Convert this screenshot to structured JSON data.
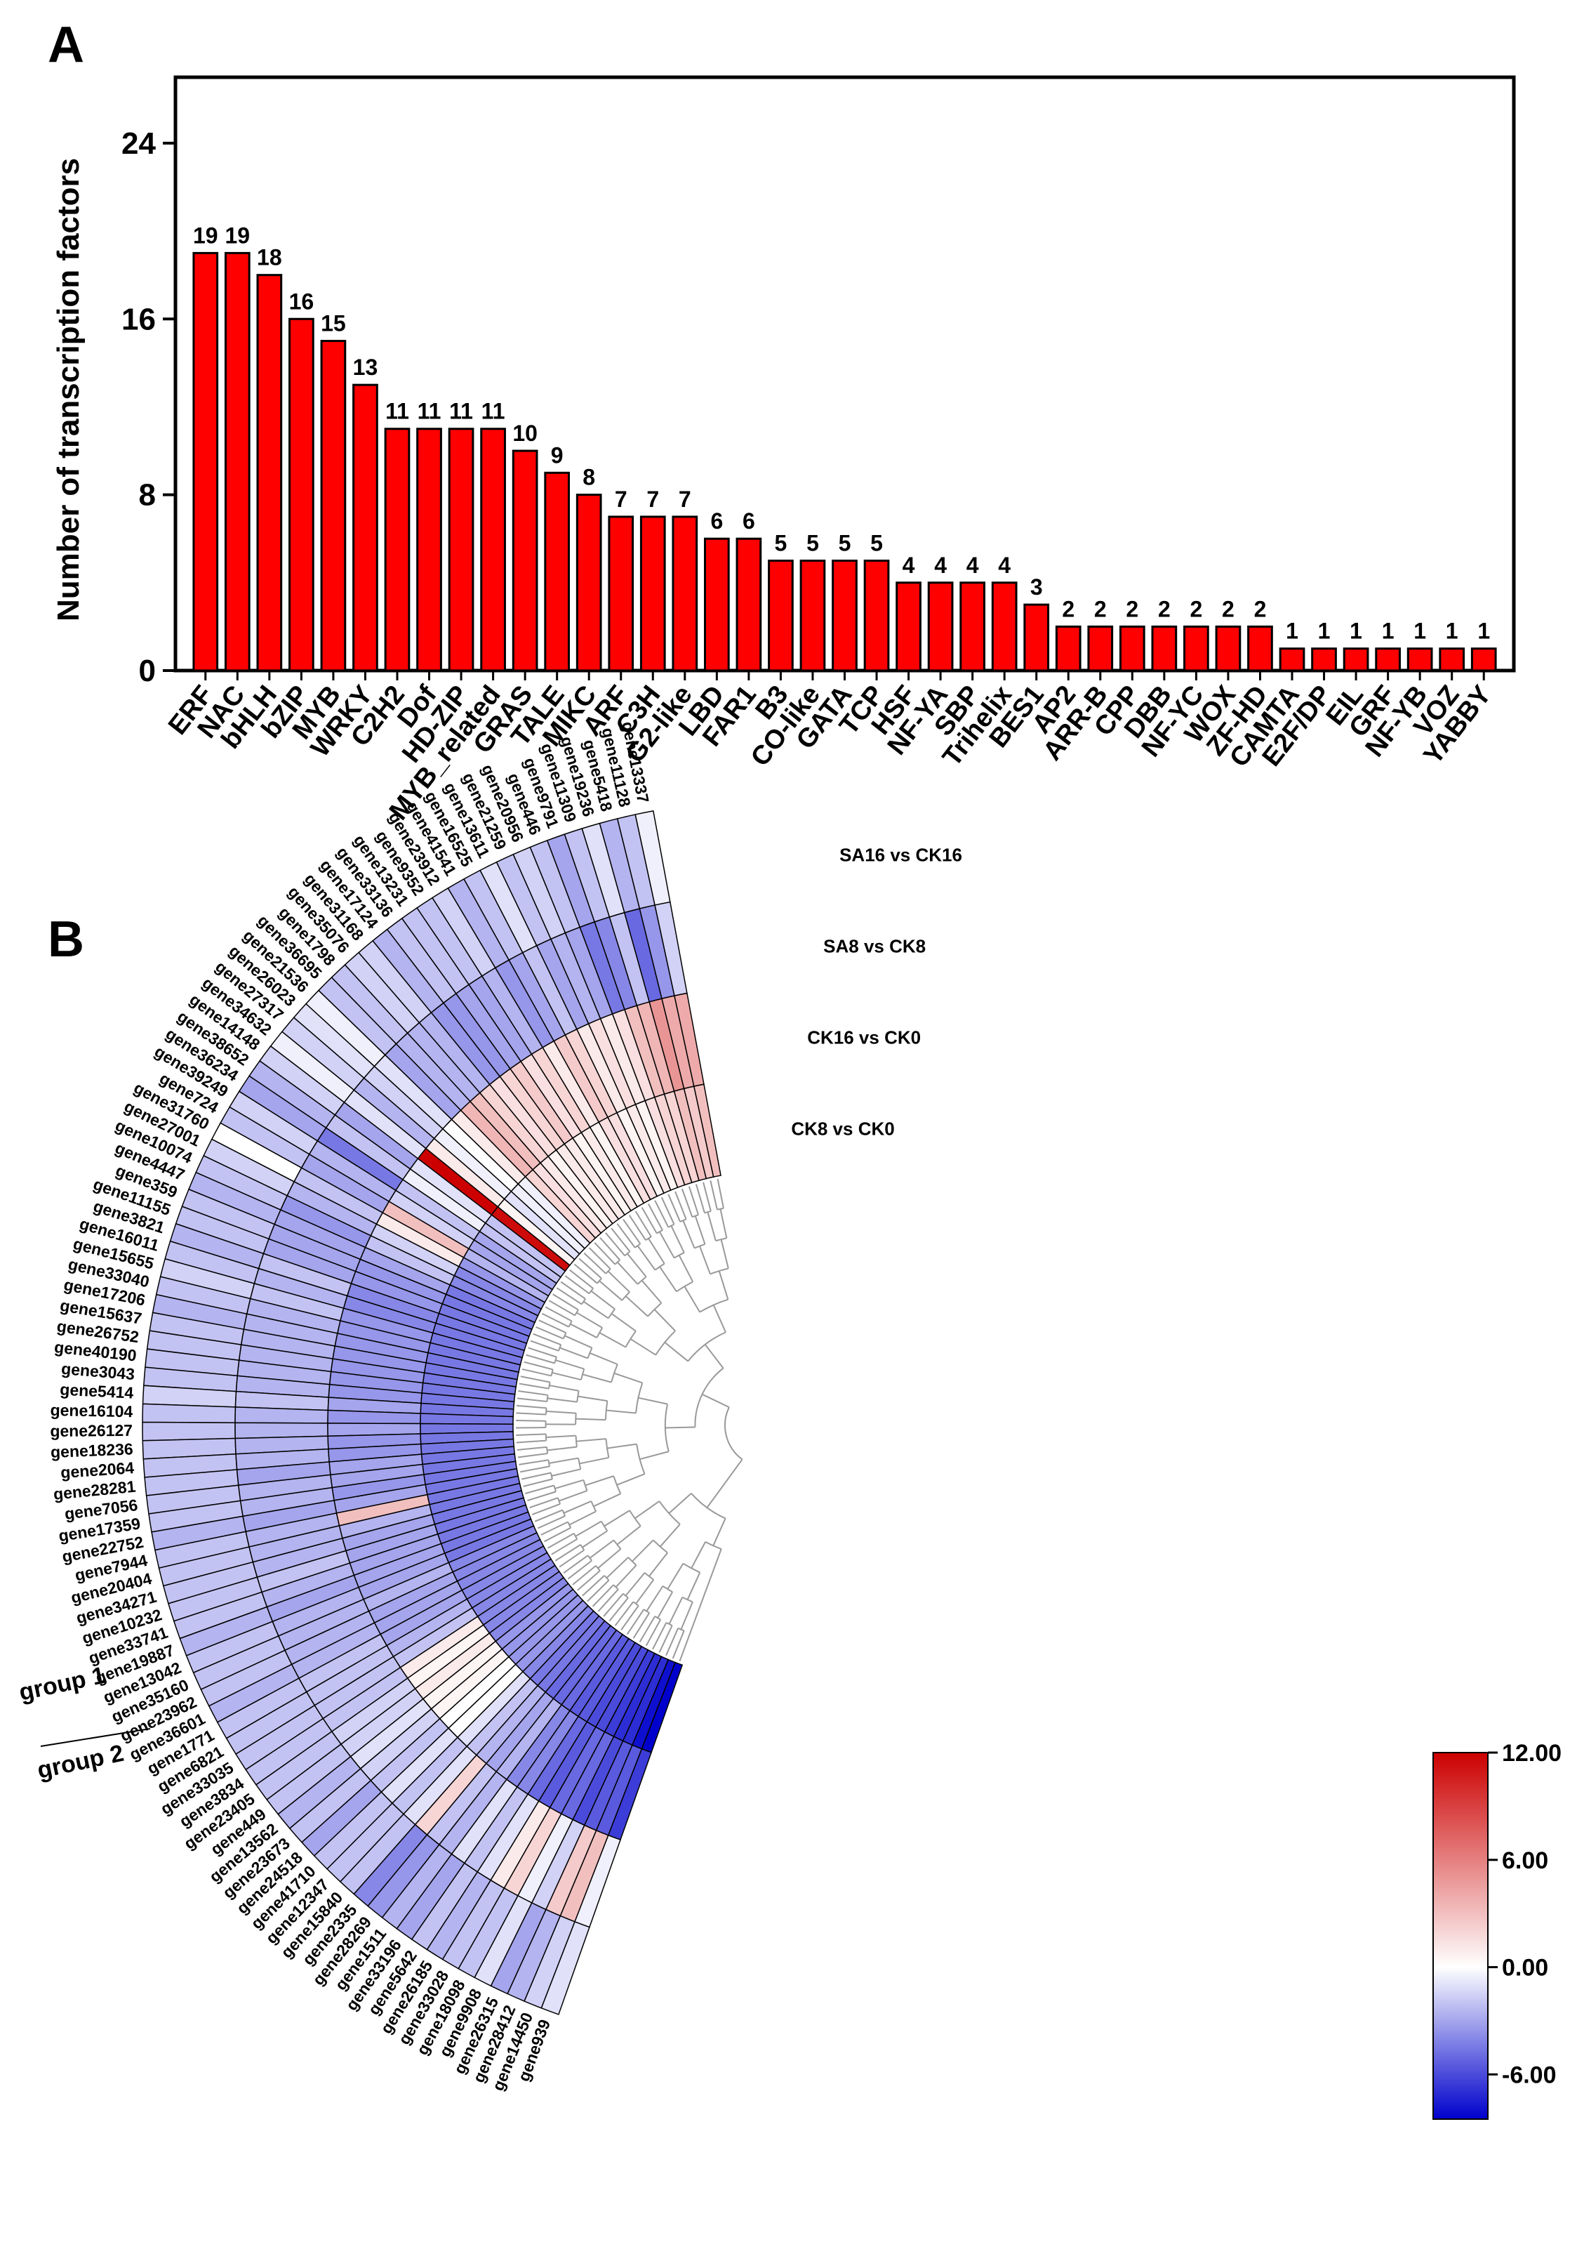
{
  "panels": {
    "a": "A",
    "b": "B"
  },
  "chart_data": [
    {
      "type": "bar",
      "ylabel": "Number of transcription factors",
      "xlabel": "",
      "ylim": [
        0,
        27
      ],
      "yticks": [
        0,
        8,
        16,
        24
      ],
      "color": "#ff0000",
      "categories": [
        "ERF",
        "NAC",
        "bHLH",
        "bZIP",
        "MYB",
        "WRKY",
        "C2H2",
        "Dof",
        "HD-ZIP",
        "MYB_related",
        "GRAS",
        "TALE",
        "MIKC",
        "ARF",
        "C3H",
        "G2-like",
        "LBD",
        "FAR1",
        "B3",
        "CO-like",
        "GATA",
        "TCP",
        "HSF",
        "NF-YA",
        "SBP",
        "Trihelix",
        "BES1",
        "AP2",
        "ARR-B",
        "CPP",
        "DBB",
        "NF-YC",
        "WOX",
        "ZF-HD",
        "CAMTA",
        "E2F/DP",
        "EIL",
        "GRF",
        "NF-YB",
        "VOZ",
        "YABBY"
      ],
      "values": [
        19,
        19,
        18,
        16,
        15,
        13,
        11,
        11,
        11,
        11,
        10,
        9,
        8,
        7,
        7,
        7,
        6,
        6,
        5,
        5,
        5,
        5,
        4,
        4,
        4,
        4,
        3,
        2,
        2,
        2,
        2,
        2,
        2,
        2,
        1,
        1,
        1,
        1,
        1,
        1,
        1
      ],
      "data_labels": [
        "19",
        "19",
        "18",
        "16",
        "15",
        "13",
        "11",
        "11",
        "11",
        "11",
        "10",
        "9",
        "8",
        "7",
        "7",
        "7",
        "6",
        "6",
        "5",
        "5",
        "5",
        "5",
        "4",
        "4",
        "4",
        "4",
        "3",
        "2",
        "2",
        "2",
        "2",
        "2",
        "2",
        "2",
        "1",
        "1",
        "1",
        "1",
        "1",
        "1",
        "1"
      ]
    },
    {
      "type": "heatmap",
      "layout": "circular",
      "rings": [
        "SA16 vs CK16",
        "SA8 vs CK8",
        "CK16 vs CK0",
        "CK8 vs CK0"
      ],
      "genes": [
        "gene13337",
        "gene11128",
        "gene5418",
        "gene19236",
        "gene11309",
        "gene9791",
        "gene446",
        "gene20956",
        "gene21259",
        "gene13611",
        "gene16525",
        "gene41541",
        "gene23912",
        "gene9352",
        "gene13231",
        "gene33136",
        "gene17124",
        "gene31168",
        "gene35076",
        "gene1798",
        "gene36695",
        "gene21536",
        "gene26023",
        "gene27317",
        "gene34632",
        "gene14148",
        "gene38652",
        "gene36234",
        "gene39249",
        "gene724",
        "gene31760",
        "gene27001",
        "gene10074",
        "gene4447",
        "gene359",
        "gene11155",
        "gene3821",
        "gene16011",
        "gene15655",
        "gene33040",
        "gene17206",
        "gene15637",
        "gene26752",
        "gene40190",
        "gene3043",
        "gene5414",
        "gene16104",
        "gene26127",
        "gene18236",
        "gene2064",
        "gene28281",
        "gene7056",
        "gene17359",
        "gene22752",
        "gene7944",
        "gene20404",
        "gene34271",
        "gene10232",
        "gene33741",
        "gene19887",
        "gene13042",
        "gene35160",
        "gene23962",
        "gene36601",
        "gene1771",
        "gene6821",
        "gene33035",
        "gene3834",
        "gene23405",
        "gene449",
        "gene13562",
        "gene23673",
        "gene24518",
        "gene41710",
        "gene12347",
        "gene15840",
        "gene2335",
        "gene28269",
        "gene1511",
        "gene33196",
        "gene5642",
        "gene26185",
        "gene33028",
        "gene18098",
        "gene9908",
        "gene26315",
        "gene28412",
        "gene14450",
        "gene939"
      ],
      "values": {
        "SA16 vs CK16": [
          -0.5,
          -2,
          -2.5,
          -1,
          -2,
          -3,
          -2,
          -1.5,
          -2,
          -1,
          -2,
          -2.5,
          -1.5,
          -2,
          -2,
          -2,
          -2.5,
          -1.5,
          -1.5,
          -2,
          -2,
          -0.5,
          -1,
          -1.5,
          -0.5,
          -1.5,
          -2.5,
          -3,
          -1.5,
          -2,
          0,
          -1.5,
          -2,
          -2.5,
          -2,
          -2,
          -2.5,
          -2,
          -1.5,
          -2,
          -2.5,
          -2,
          -2,
          -2,
          -2,
          -1.5,
          -2,
          -2,
          -2,
          -2,
          -2,
          -2,
          -2,
          -2.5,
          -2,
          -2,
          -2,
          -2,
          -2,
          -2.5,
          -2,
          -2,
          -2,
          -2.5,
          -2,
          -2,
          -2,
          -2,
          -2,
          -2,
          -2.5,
          -2,
          -3,
          -2,
          -2,
          -2,
          -4,
          -3.5,
          -2.5,
          -3,
          -2,
          -2.5,
          -2,
          -2,
          -1,
          -3,
          -2.5,
          -1.5,
          -1
        ],
        "SA8 vs CK8": [
          -1.5,
          -3.5,
          -5,
          -2,
          -4,
          -4.5,
          -3,
          -2.5,
          -3,
          -2,
          -3,
          -3.5,
          -2.5,
          -3,
          -3,
          -3.5,
          -3.5,
          -2.5,
          -2.5,
          -2.5,
          -3,
          -1,
          -1.5,
          -2.5,
          -1,
          -3,
          -2,
          -4.5,
          -2.5,
          -3,
          -2,
          -2.5,
          -3.5,
          -3,
          -3,
          -3,
          -2,
          -2.5,
          -2,
          -2.5,
          -2.5,
          -2.5,
          -2.5,
          -2.5,
          -2.5,
          -2,
          -2.5,
          -2.5,
          -2.5,
          -2.5,
          -3,
          -2.5,
          -2.5,
          -3,
          -2.5,
          -2.5,
          -2.5,
          -2,
          -2.5,
          -3,
          -2.5,
          -2.5,
          -2.5,
          -2.5,
          -2,
          -2,
          -2,
          -2,
          -1.5,
          -1.5,
          -1,
          -1.5,
          -2,
          -1,
          -2,
          -1,
          2,
          -2,
          -2.5,
          -1,
          -2,
          -1,
          1,
          2,
          -0.5,
          -1.5,
          2.5,
          3,
          -0.5
        ],
        "CK16 vs CK0": [
          4,
          4,
          5,
          3.5,
          3,
          1.5,
          1,
          1.5,
          1,
          2,
          2.5,
          1,
          2,
          1.5,
          2.5,
          2,
          1.5,
          2,
          3,
          3.5,
          1,
          0,
          -0.5,
          1,
          12,
          -1,
          -0.5,
          -2,
          -1.5,
          3,
          1,
          -1.5,
          -2,
          -3,
          -3.5,
          -3.5,
          -4,
          -4,
          -3.5,
          -3.5,
          -3.5,
          -3.5,
          -3.5,
          -3.5,
          -3.5,
          -3,
          -3.5,
          -3,
          -3.5,
          -3.5,
          -3,
          -3,
          -3.5,
          -3,
          3,
          -2.5,
          -3,
          -3,
          -3,
          -3,
          -3,
          -2.5,
          -3,
          -3,
          -3,
          -2.5,
          -2,
          1,
          0.5,
          1,
          0.5,
          0.5,
          0,
          0,
          -1,
          -2,
          -2.5,
          -3,
          -2.5,
          -4,
          -4,
          -5,
          -5.5,
          -5,
          -5,
          -6,
          -5.5,
          -5.5,
          -6.5
        ],
        "CK8 vs CK0": [
          3,
          2.5,
          3,
          2,
          2,
          1.5,
          0.5,
          1,
          0.5,
          1.5,
          1.5,
          0.5,
          1,
          0.5,
          1,
          1,
          0.5,
          1,
          1.5,
          2,
          -0.5,
          -0.5,
          -1,
          0.5,
          11.5,
          -2,
          -2,
          -3,
          -3,
          -2.5,
          -3.5,
          -4,
          -4,
          -4.5,
          -4.5,
          -4.5,
          -4.5,
          -4.5,
          -4.5,
          -4.5,
          -4.5,
          -4.5,
          -4.5,
          -4.5,
          -4.5,
          -4.5,
          -4.5,
          -4.5,
          -4.5,
          -4.5,
          -4.5,
          -4.5,
          -4.5,
          -4.5,
          -4.5,
          -4.5,
          -4.5,
          -4.5,
          -4.5,
          -4.5,
          -4.5,
          -4,
          -4,
          -4,
          -4,
          -4,
          -4,
          -4,
          -4,
          -4,
          -3.5,
          -3.5,
          -3.5,
          -3.5,
          -4,
          -4.5,
          -4.5,
          -5,
          -5,
          -5,
          -5.5,
          -5.5,
          -6,
          -6,
          -6.5,
          -7,
          -7,
          -8,
          -9.5
        ]
      },
      "groups": [
        {
          "label": "group 1"
        },
        {
          "label": "group 2"
        }
      ],
      "colorbar": {
        "min": -8.5,
        "max": 12,
        "ticks": [
          "12.00",
          "6.00",
          "0.00",
          "-6.00"
        ],
        "tick_values": [
          12,
          6,
          0,
          -6
        ],
        "colors": {
          "low": "#0000cc",
          "mid": "#ffffff",
          "high": "#cc0000"
        }
      }
    }
  ]
}
